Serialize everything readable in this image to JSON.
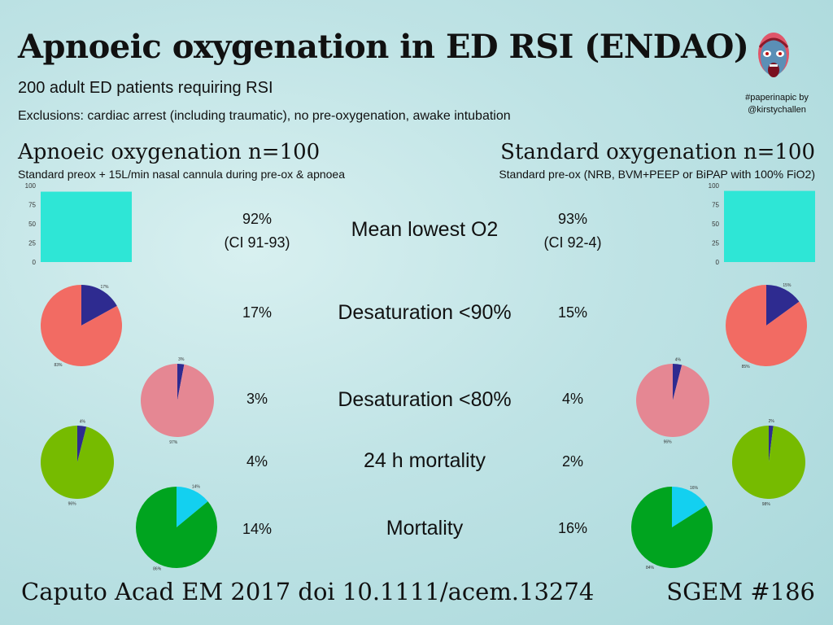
{
  "title": "Apnoeic oxygenation in ED RSI (ENDAO)",
  "subtitle": "200 adult ED patients requiring RSI",
  "exclusions": "Exclusions: cardiac arrest (including traumatic), no pre-oxygenation, awake intubation",
  "credit": [
    "#paperinapic by",
    "@kirstychallen"
  ],
  "arms": {
    "left": {
      "heading": "Apnoeic oxygenation n=100",
      "description": "Standard preox + 15L/min nasal cannula during pre-ox & apnoea"
    },
    "right": {
      "heading": "Standard oxygenation n=100",
      "description": "Standard pre-ox (NRB, BVM+PEEP or BiPAP with 100% FiO2)"
    }
  },
  "outcomes": [
    {
      "label": "Mean lowest O2",
      "left": [
        "92%",
        "(CI 91-93)"
      ],
      "right": [
        "93%",
        "(CI 92-4)"
      ]
    },
    {
      "label": "Desaturation <90%",
      "left": [
        "17%"
      ],
      "right": [
        "15%"
      ]
    },
    {
      "label": "Desaturation <80%",
      "left": [
        "3%"
      ],
      "right": [
        "4%"
      ]
    },
    {
      "label": "24 h mortality",
      "left": [
        "4%"
      ],
      "right": [
        "2%"
      ]
    },
    {
      "label": "Mortality",
      "left": [
        "14%"
      ],
      "right": [
        "16%"
      ]
    }
  ],
  "footer": {
    "reference": "Caputo Acad EM 2017 doi 10.1111/acem.13274",
    "tag": "SGEM #186"
  },
  "colors": {
    "bar": "#2ee6d6",
    "slice_minor": "#2e2b90",
    "slice_minor_alt": "#13a9e8",
    "pie_desat90": "#f26b63",
    "pie_desat80": "#e58793",
    "pie_mort24": "#76bb00",
    "pie_mort": "#00a41f"
  },
  "chart_data": [
    {
      "id": "bar-left",
      "type": "bar",
      "categories": [
        ""
      ],
      "values": [
        92
      ],
      "ylim": [
        0,
        100
      ],
      "yticks": [
        0,
        25,
        50,
        75,
        100
      ]
    },
    {
      "id": "bar-right",
      "type": "bar",
      "categories": [
        ""
      ],
      "values": [
        93
      ],
      "ylim": [
        0,
        100
      ],
      "yticks": [
        0,
        25,
        50,
        75,
        100
      ]
    },
    {
      "id": "pie-left-desat90",
      "type": "pie",
      "values": [
        17,
        83
      ],
      "labels": [
        "17%",
        "83%"
      ],
      "colors": [
        "#2e2b90",
        "#f26b63"
      ]
    },
    {
      "id": "pie-left-desat80",
      "type": "pie",
      "values": [
        3,
        97
      ],
      "labels": [
        "3%",
        "97%"
      ],
      "colors": [
        "#2e2b90",
        "#e58793"
      ]
    },
    {
      "id": "pie-left-mort24",
      "type": "pie",
      "values": [
        4,
        96
      ],
      "labels": [
        "4%",
        "96%"
      ],
      "colors": [
        "#2e2b90",
        "#76bb00"
      ]
    },
    {
      "id": "pie-left-mort",
      "type": "pie",
      "values": [
        14,
        86
      ],
      "labels": [
        "14%",
        "86%"
      ],
      "colors": [
        "#13d0f0",
        "#00a41f"
      ]
    },
    {
      "id": "pie-right-desat90",
      "type": "pie",
      "values": [
        15,
        85
      ],
      "labels": [
        "15%",
        "85%"
      ],
      "colors": [
        "#2e2b90",
        "#f26b63"
      ]
    },
    {
      "id": "pie-right-desat80",
      "type": "pie",
      "values": [
        4,
        96
      ],
      "labels": [
        "4%",
        "96%"
      ],
      "colors": [
        "#2e2b90",
        "#e58793"
      ]
    },
    {
      "id": "pie-right-mort24",
      "type": "pie",
      "values": [
        2,
        98
      ],
      "labels": [
        "2%",
        "98%"
      ],
      "colors": [
        "#2e2b90",
        "#76bb00"
      ]
    },
    {
      "id": "pie-right-mort",
      "type": "pie",
      "values": [
        16,
        84
      ],
      "labels": [
        "16%",
        "84%"
      ],
      "colors": [
        "#13d0f0",
        "#00a41f"
      ]
    }
  ]
}
